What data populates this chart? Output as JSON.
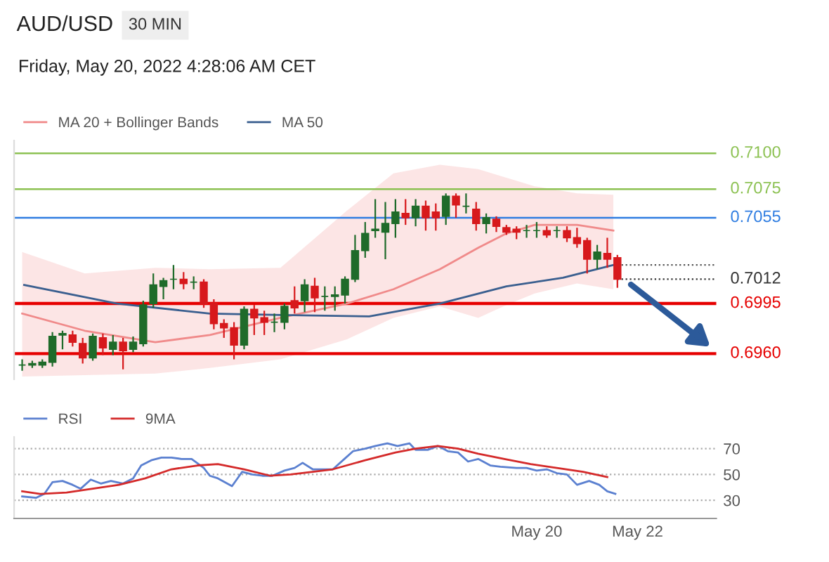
{
  "chart_data": [
    {
      "type": "candlestick",
      "title": "AUD/USD",
      "subtitle": "30 MIN",
      "annotations": [
        "Friday, May 20, 2022 4:28:06 AM CET"
      ],
      "x": [
        "2022-05-18T22:30",
        "2022-05-18T23:00",
        "2022-05-18T23:30",
        "2022-05-19T00:00",
        "2022-05-19T00:30",
        "2022-05-19T01:00",
        "2022-05-19T01:30",
        "2022-05-19T02:00",
        "2022-05-19T02:30",
        "2022-05-19T03:00",
        "2022-05-19T03:30",
        "2022-05-19T04:00",
        "2022-05-19T04:30",
        "2022-05-19T05:00",
        "2022-05-19T05:30",
        "2022-05-19T06:00",
        "2022-05-19T06:30",
        "2022-05-19T07:00",
        "2022-05-19T07:30",
        "2022-05-19T08:00",
        "2022-05-19T08:30",
        "2022-05-19T09:00",
        "2022-05-19T09:30",
        "2022-05-19T10:00",
        "2022-05-19T10:30",
        "2022-05-19T11:00",
        "2022-05-19T11:30",
        "2022-05-19T12:00",
        "2022-05-19T12:30",
        "2022-05-19T13:00",
        "2022-05-19T13:30",
        "2022-05-19T14:00",
        "2022-05-19T14:30",
        "2022-05-19T15:00",
        "2022-05-19T15:30",
        "2022-05-19T16:00",
        "2022-05-19T16:30",
        "2022-05-19T17:00",
        "2022-05-19T17:30",
        "2022-05-19T18:00",
        "2022-05-19T18:30",
        "2022-05-19T19:00",
        "2022-05-19T19:30",
        "2022-05-19T20:00",
        "2022-05-19T20:30",
        "2022-05-19T21:00",
        "2022-05-19T21:30",
        "2022-05-19T22:00",
        "2022-05-19T22:30",
        "2022-05-19T23:00",
        "2022-05-19T23:30",
        "2022-05-20T00:00",
        "2022-05-20T00:30",
        "2022-05-20T01:00",
        "2022-05-20T01:30",
        "2022-05-20T02:00",
        "2022-05-20T02:30",
        "2022-05-20T03:00",
        "2022-05-20T03:30",
        "2022-05-20T04:00"
      ],
      "ohlc": [
        [
          0.6952,
          0.6956,
          0.6948,
          0.6952
        ],
        [
          0.6952,
          0.6955,
          0.695,
          0.6953
        ],
        [
          0.6952,
          0.6956,
          0.695,
          0.6954
        ],
        [
          0.6954,
          0.6975,
          0.6951,
          0.6972
        ],
        [
          0.6973,
          0.6976,
          0.6963,
          0.6974
        ],
        [
          0.6973,
          0.6976,
          0.6965,
          0.6968
        ],
        [
          0.6967,
          0.6971,
          0.6953,
          0.6957
        ],
        [
          0.6957,
          0.6974,
          0.6955,
          0.6972
        ],
        [
          0.6971,
          0.6974,
          0.6959,
          0.6964
        ],
        [
          0.6963,
          0.6973,
          0.6959,
          0.6968
        ],
        [
          0.6968,
          0.6971,
          0.6949,
          0.6962
        ],
        [
          0.6963,
          0.6972,
          0.6961,
          0.6968
        ],
        [
          0.6967,
          0.6997,
          0.6965,
          0.6994
        ],
        [
          0.6995,
          0.7016,
          0.6992,
          0.7008
        ],
        [
          0.7007,
          0.7013,
          0.6998,
          0.7011
        ],
        [
          0.7012,
          0.7022,
          0.7005,
          0.7012
        ],
        [
          0.7012,
          0.7017,
          0.7005,
          0.7009
        ],
        [
          0.701,
          0.7014,
          0.7005,
          0.701
        ],
        [
          0.701,
          0.7012,
          0.6992,
          0.6995
        ],
        [
          0.6995,
          0.6998,
          0.6977,
          0.6981
        ],
        [
          0.6981,
          0.6984,
          0.6971,
          0.6978
        ],
        [
          0.6978,
          0.6982,
          0.6956,
          0.6966
        ],
        [
          0.6966,
          0.6993,
          0.6963,
          0.6991
        ],
        [
          0.6991,
          0.6994,
          0.6973,
          0.6985
        ],
        [
          0.6985,
          0.699,
          0.6973,
          0.6982
        ],
        [
          0.6982,
          0.6988,
          0.6975,
          0.6982
        ],
        [
          0.6982,
          0.6995,
          0.6977,
          0.6993
        ],
        [
          0.6997,
          0.7007,
          0.6988,
          0.6992
        ],
        [
          0.6997,
          0.7012,
          0.6989,
          0.7008
        ],
        [
          0.7007,
          0.7013,
          0.6989,
          0.6999
        ],
        [
          0.7,
          0.7007,
          0.699,
          0.7
        ],
        [
          0.7,
          0.7007,
          0.699,
          0.7001
        ],
        [
          0.7001,
          0.7014,
          0.6995,
          0.7012
        ],
        [
          0.7012,
          0.7043,
          0.701,
          0.7032
        ],
        [
          0.7032,
          0.7052,
          0.7027,
          0.7044
        ],
        [
          0.7046,
          0.7068,
          0.7041,
          0.7047
        ],
        [
          0.7045,
          0.7066,
          0.7026,
          0.7051
        ],
        [
          0.7051,
          0.7068,
          0.7041,
          0.7059
        ],
        [
          0.7058,
          0.7068,
          0.705,
          0.7055
        ],
        [
          0.7055,
          0.7068,
          0.7049,
          0.7063
        ],
        [
          0.7063,
          0.7067,
          0.7046,
          0.7055
        ],
        [
          0.7059,
          0.7065,
          0.7046,
          0.7055
        ],
        [
          0.7056,
          0.7072,
          0.705,
          0.707
        ],
        [
          0.707,
          0.7072,
          0.7055,
          0.7064
        ],
        [
          0.7063,
          0.7072,
          0.7058,
          0.7063
        ],
        [
          0.7061,
          0.7066,
          0.7046,
          0.7051
        ],
        [
          0.7051,
          0.7058,
          0.7044,
          0.7055
        ],
        [
          0.7054,
          0.7056,
          0.7045,
          0.7049
        ],
        [
          0.7048,
          0.705,
          0.7043,
          0.7045
        ],
        [
          0.7047,
          0.7049,
          0.704,
          0.7045
        ],
        [
          0.7046,
          0.705,
          0.7041,
          0.7046
        ],
        [
          0.7046,
          0.7052,
          0.7041,
          0.7046
        ],
        [
          0.7046,
          0.7049,
          0.7041,
          0.7043
        ],
        [
          0.7046,
          0.7049,
          0.7041,
          0.7046
        ],
        [
          0.7046,
          0.7049,
          0.7038,
          0.7041
        ],
        [
          0.7041,
          0.7048,
          0.7034,
          0.7037
        ],
        [
          0.7039,
          0.7041,
          0.7016,
          0.7026
        ],
        [
          0.7026,
          0.7036,
          0.7019,
          0.7031
        ],
        [
          0.703,
          0.7041,
          0.702,
          0.7026
        ],
        [
          0.7027,
          0.7029,
          0.7006,
          0.7012
        ]
      ],
      "colors": [
        "#1f6b2a",
        "#1f6b2a",
        "#1f6b2a",
        "#1f6b2a",
        "#1f6b2a",
        "#d7191c",
        "#d7191c",
        "#1f6b2a",
        "#d7191c",
        "#1f6b2a",
        "#d7191c",
        "#1f6b2a",
        "#1f6b2a",
        "#1f6b2a",
        "#1f6b2a",
        "#1f6b2a",
        "#d7191c",
        "#1f6b2a",
        "#d7191c",
        "#d7191c",
        "#d7191c",
        "#d7191c",
        "#1f6b2a",
        "#d7191c",
        "#d7191c",
        "#1f6b2a",
        "#1f6b2a",
        "#d7191c",
        "#1f6b2a",
        "#d7191c",
        "#1f6b2a",
        "#1f6b2a",
        "#1f6b2a",
        "#1f6b2a",
        "#1f6b2a",
        "#1f6b2a",
        "#1f6b2a",
        "#1f6b2a",
        "#d7191c",
        "#1f6b2a",
        "#d7191c",
        "#d7191c",
        "#1f6b2a",
        "#d7191c",
        "#1f6b2a",
        "#d7191c",
        "#1f6b2a",
        "#d7191c",
        "#d7191c",
        "#d7191c",
        "#1f6b2a",
        "#1f6b2a",
        "#d7191c",
        "#1f6b2a",
        "#d7191c",
        "#d7191c",
        "#d7191c",
        "#1f6b2a",
        "#d7191c",
        "#d7191c"
      ],
      "series": [
        {
          "type": "line",
          "name": "MA 20 + Bollinger Bands",
          "color": "#f08a8a",
          "x": [
            "2022-05-18T22:30",
            "2022-05-19T01:36",
            "2022-05-19T05:06",
            "2022-05-19T07:48",
            "2022-05-19T11:18",
            "2022-05-19T14:36",
            "2022-05-19T16:54",
            "2022-05-19T19:12",
            "2022-05-19T21:06",
            "2022-05-19T22:30",
            "2022-05-19T23:54",
            "2022-05-20T02:00",
            "2022-05-20T03:48"
          ],
          "values": [
            0.6988,
            0.6976,
            0.6968,
            0.6973,
            0.6985,
            0.6995,
            0.7005,
            0.7019,
            0.7034,
            0.7044,
            0.705,
            0.705,
            0.7046
          ],
          "lower": [
            0.6944,
            0.6945,
            0.6946,
            0.695,
            0.6956,
            0.697,
            0.6985,
            0.6993,
            0.6985,
            0.6994,
            0.7002,
            0.7009,
            0.7005
          ],
          "upper": [
            0.7031,
            0.7016,
            0.702,
            0.7019,
            0.702,
            0.706,
            0.7086,
            0.7092,
            0.7089,
            0.7083,
            0.7077,
            0.7072,
            0.7071
          ]
        },
        {
          "type": "line",
          "name": "MA 50",
          "color": "#3a5f8f",
          "x": [
            "2022-05-18T22:36",
            "2022-05-19T03:12",
            "2022-05-19T07:48",
            "2022-05-19T11:18",
            "2022-05-19T15:42",
            "2022-05-19T19:12",
            "2022-05-19T22:30",
            "2022-05-20T01:18",
            "2022-05-20T03:48"
          ],
          "values": [
            0.7008,
            0.6995,
            0.6988,
            0.6987,
            0.6986,
            0.6995,
            0.7007,
            0.7013,
            0.7022
          ]
        }
      ],
      "ref_lines": [
        {
          "axis": "y",
          "value": 0.71,
          "label": "0.7100",
          "color": "#8cc152"
        },
        {
          "axis": "y",
          "value": 0.7075,
          "label": "0.7075",
          "color": "#8cc152"
        },
        {
          "axis": "y",
          "value": 0.7055,
          "label": "0.7055",
          "color": "#2f7de1"
        },
        {
          "axis": "y",
          "value": 0.7022,
          "color": "#555555",
          "line_style": "dotted"
        },
        {
          "axis": "y",
          "value": 0.7012,
          "label": "0.7012",
          "color": "#333333",
          "line_style": "dotted"
        },
        {
          "axis": "y",
          "value": 0.6995,
          "label": "0.6995",
          "color": "#e60000"
        },
        {
          "axis": "y",
          "value": 0.696,
          "label": "0.6960",
          "color": "#e60000"
        }
      ],
      "xlim": [
        "2022-05-18T22:06",
        "2022-05-20T08:54"
      ],
      "ylim": [
        0.6942,
        0.7109
      ],
      "legend": "top left",
      "tick_labels": false
    },
    {
      "type": "line",
      "series": [
        {
          "name": "RSI",
          "color": "#5b80d0",
          "x": [
            "2022-05-18T22:30",
            "2022-05-18T23:12",
            "2022-05-18T23:36",
            "2022-05-19T00:00",
            "2022-05-19T00:30",
            "2022-05-19T01:00",
            "2022-05-19T01:24",
            "2022-05-19T01:54",
            "2022-05-19T02:24",
            "2022-05-19T02:54",
            "2022-05-19T03:30",
            "2022-05-19T04:00",
            "2022-05-19T04:24",
            "2022-05-19T04:54",
            "2022-05-19T05:24",
            "2022-05-19T05:54",
            "2022-05-19T06:24",
            "2022-05-19T06:54",
            "2022-05-19T07:30",
            "2022-05-19T07:48",
            "2022-05-19T08:12",
            "2022-05-19T08:54",
            "2022-05-19T09:24",
            "2022-05-19T09:54",
            "2022-05-19T10:24",
            "2022-05-19T10:54",
            "2022-05-19T11:30",
            "2022-05-19T12:00",
            "2022-05-19T12:24",
            "2022-05-19T12:54",
            "2022-05-19T13:24",
            "2022-05-19T13:54",
            "2022-05-19T14:24",
            "2022-05-19T14:54",
            "2022-05-19T15:30",
            "2022-05-19T16:00",
            "2022-05-19T16:36",
            "2022-05-19T17:06",
            "2022-05-19T17:42",
            "2022-05-19T18:00",
            "2022-05-19T18:36",
            "2022-05-19T19:06",
            "2022-05-19T19:36",
            "2022-05-19T20:06",
            "2022-05-19T20:36",
            "2022-05-19T21:06",
            "2022-05-19T21:42",
            "2022-05-19T22:12",
            "2022-05-19T23:00",
            "2022-05-19T23:30",
            "2022-05-20T00:00",
            "2022-05-20T00:30",
            "2022-05-20T01:00",
            "2022-05-20T01:30",
            "2022-05-20T02:00",
            "2022-05-20T02:36",
            "2022-05-20T03:06",
            "2022-05-20T03:30",
            "2022-05-20T03:54"
          ],
          "values": [
            33,
            32,
            35,
            44,
            45,
            42,
            39,
            46,
            43,
            45,
            43,
            47,
            57,
            61,
            63,
            63,
            62,
            62,
            55,
            49,
            47,
            41,
            52,
            50,
            49,
            49,
            53,
            55,
            59,
            54,
            54,
            54,
            61,
            68,
            70,
            72,
            74,
            72,
            74,
            69,
            69,
            72,
            68,
            67,
            60,
            62,
            57,
            56,
            55,
            55,
            53,
            54,
            51,
            50,
            42,
            45,
            42,
            37,
            35
          ]
        },
        {
          "name": "9MA",
          "color": "#d42a2a",
          "x": [
            "2022-05-18T22:30",
            "2022-05-18T23:24",
            "2022-05-19T00:42",
            "2022-05-19T02:00",
            "2022-05-19T03:18",
            "2022-05-19T04:36",
            "2022-05-19T05:54",
            "2022-05-19T07:12",
            "2022-05-19T08:12",
            "2022-05-19T09:30",
            "2022-05-19T10:48",
            "2022-05-19T11:48",
            "2022-05-19T12:54",
            "2022-05-19T13:54",
            "2022-05-19T15:30",
            "2022-05-19T17:00",
            "2022-05-19T18:00",
            "2022-05-19T19:06",
            "2022-05-19T20:06",
            "2022-05-19T21:06",
            "2022-05-19T22:24",
            "2022-05-19T23:42",
            "2022-05-20T01:00",
            "2022-05-20T02:18",
            "2022-05-20T03:30"
          ],
          "values": [
            37,
            35,
            36,
            39,
            42,
            47,
            54,
            57,
            58,
            54,
            49,
            50,
            52,
            54,
            61,
            67,
            70,
            72,
            70,
            66,
            62,
            58,
            55,
            52,
            48
          ]
        }
      ],
      "xlim": [
        "2022-05-18T22:06",
        "2022-05-20T08:54"
      ],
      "xticks": [
        {
          "value": "2022-05-20T00:00",
          "label": "May 20"
        },
        {
          "value": "2022-05-20T05:00",
          "label": "May 22"
        }
      ],
      "ylim": [
        16,
        79
      ],
      "yticks": [
        30,
        50,
        70
      ],
      "grid": "y",
      "legend": "top left"
    }
  ]
}
